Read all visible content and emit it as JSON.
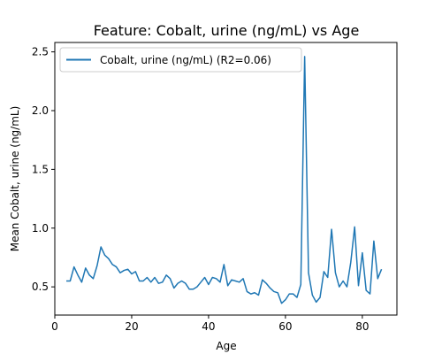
{
  "chart_data": {
    "type": "line",
    "title": "Feature: Cobalt, urine (ng/mL) vs Age",
    "xlabel": "Age",
    "ylabel": "Mean Cobalt, urine (ng/mL)",
    "xlim": [
      0,
      89
    ],
    "ylim": [
      0.26,
      2.58
    ],
    "xticks": [
      0,
      20,
      40,
      60,
      80
    ],
    "yticks": [
      0.5,
      1.0,
      1.5,
      2.0,
      2.5
    ],
    "xtick_labels": [
      "0",
      "20",
      "40",
      "60",
      "80"
    ],
    "ytick_labels": [
      "0.5",
      "1.0",
      "1.5",
      "2.0",
      "2.5"
    ],
    "legend_position": "top-left",
    "grid": false,
    "series": [
      {
        "name": "Cobalt, urine (ng/mL) (R2=0.06)",
        "color": "#1f77b4",
        "x": [
          3,
          4,
          5,
          6,
          7,
          8,
          9,
          10,
          11,
          12,
          13,
          14,
          15,
          16,
          17,
          18,
          19,
          20,
          21,
          22,
          23,
          24,
          25,
          26,
          27,
          28,
          29,
          30,
          31,
          32,
          33,
          34,
          35,
          36,
          37,
          38,
          39,
          40,
          41,
          42,
          43,
          44,
          45,
          46,
          47,
          48,
          49,
          50,
          51,
          52,
          53,
          54,
          55,
          56,
          57,
          58,
          59,
          60,
          61,
          62,
          63,
          64,
          65,
          66,
          67,
          68,
          69,
          70,
          71,
          72,
          73,
          74,
          75,
          76,
          77,
          78,
          79,
          80,
          81,
          82,
          83,
          84,
          85
        ],
        "y": [
          0.55,
          0.55,
          0.67,
          0.6,
          0.54,
          0.66,
          0.6,
          0.57,
          0.68,
          0.84,
          0.77,
          0.74,
          0.69,
          0.67,
          0.62,
          0.64,
          0.65,
          0.61,
          0.63,
          0.55,
          0.55,
          0.58,
          0.54,
          0.58,
          0.53,
          0.54,
          0.6,
          0.57,
          0.49,
          0.53,
          0.55,
          0.53,
          0.48,
          0.48,
          0.5,
          0.54,
          0.58,
          0.52,
          0.58,
          0.57,
          0.54,
          0.69,
          0.51,
          0.56,
          0.55,
          0.54,
          0.57,
          0.46,
          0.44,
          0.45,
          0.43,
          0.56,
          0.53,
          0.49,
          0.46,
          0.45,
          0.36,
          0.39,
          0.44,
          0.44,
          0.41,
          0.52,
          2.46,
          0.62,
          0.43,
          0.37,
          0.41,
          0.63,
          0.58,
          0.99,
          0.62,
          0.5,
          0.55,
          0.5,
          0.71,
          1.01,
          0.51,
          0.79,
          0.47,
          0.44,
          0.89,
          0.57,
          0.65
        ]
      }
    ]
  }
}
